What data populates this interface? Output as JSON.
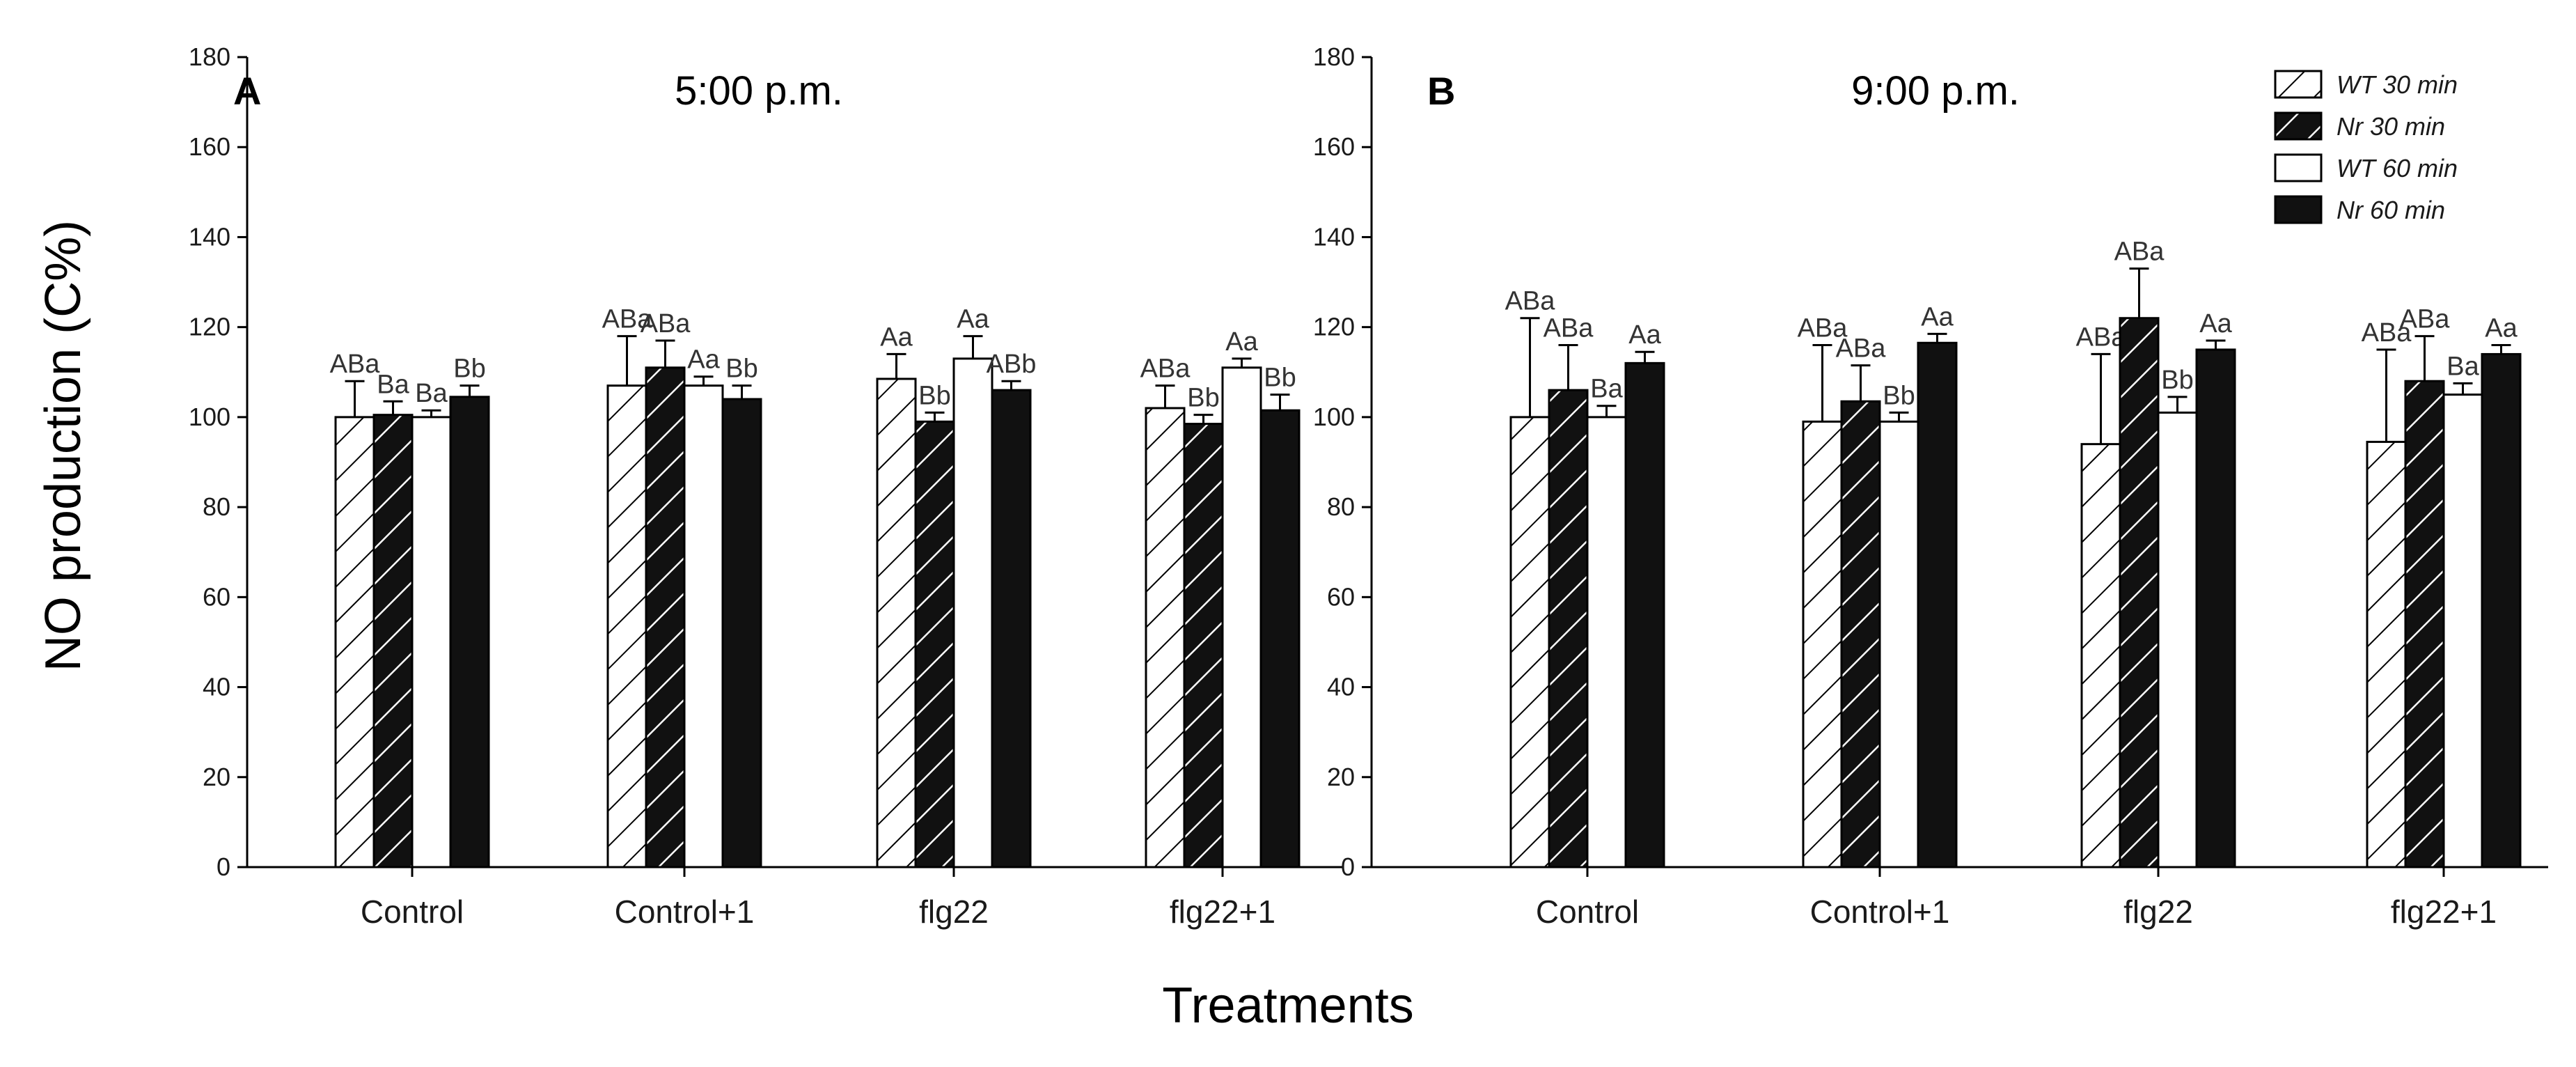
{
  "figure": {
    "ylabel": "NO production (C%)",
    "xlabel": "Treatments"
  },
  "legend": [
    {
      "name": "WT 30 min",
      "pattern": "hatch-white"
    },
    {
      "name": "Nr 30 min",
      "pattern": "hatch-black"
    },
    {
      "name": "WT 60 min",
      "pattern": "open"
    },
    {
      "name": "Nr 60 min",
      "pattern": "solid"
    }
  ],
  "colors": {
    "fill_dark": "#111111",
    "fill_light": "#ffffff",
    "stroke": "#000000"
  },
  "chart_data": [
    {
      "type": "bar",
      "panel_letter": "A",
      "title": "5:00 p.m.",
      "ylim": [
        0,
        180
      ],
      "yticks": [
        0,
        20,
        40,
        60,
        80,
        100,
        120,
        140,
        160,
        180
      ],
      "categories": [
        "Control",
        "Control+1",
        "flg22",
        "flg22+1"
      ],
      "series": [
        {
          "name": "WT 30 min",
          "values": [
            100,
            107,
            108.5,
            102
          ],
          "errors": [
            8,
            11,
            5.5,
            5
          ],
          "labels": [
            "ABa",
            "ABa",
            "Aa",
            "ABa"
          ]
        },
        {
          "name": "Nr 30 min",
          "values": [
            100.5,
            111,
            99,
            98.5
          ],
          "errors": [
            3,
            6,
            2,
            2
          ],
          "labels": [
            "Ba",
            "ABa",
            "Bb",
            "Bb"
          ]
        },
        {
          "name": "WT 60 min",
          "values": [
            100,
            107,
            113,
            111
          ],
          "errors": [
            1.5,
            2,
            5,
            2
          ],
          "labels": [
            "Ba",
            "Aa",
            "Aa",
            "Aa"
          ]
        },
        {
          "name": "Nr 60 min",
          "values": [
            104.5,
            104,
            106,
            101.5
          ],
          "errors": [
            2.5,
            3,
            2,
            3.5
          ],
          "labels": [
            "Bb",
            "Bb",
            "ABb",
            "Bb"
          ]
        }
      ]
    },
    {
      "type": "bar",
      "panel_letter": "B",
      "title": "9:00 p.m.",
      "ylim": [
        0,
        180
      ],
      "yticks": [
        0,
        20,
        40,
        60,
        80,
        100,
        120,
        140,
        160,
        180
      ],
      "categories": [
        "Control",
        "Control+1",
        "flg22",
        "flg22+1"
      ],
      "series": [
        {
          "name": "WT 30 min",
          "values": [
            100,
            99,
            94,
            94.5
          ],
          "errors": [
            22,
            17,
            20,
            20.5
          ],
          "labels": [
            "ABa",
            "ABa",
            "ABa",
            "ABa"
          ]
        },
        {
          "name": "Nr 30 min",
          "values": [
            106,
            103.5,
            122,
            108
          ],
          "errors": [
            10,
            8,
            11,
            10
          ],
          "labels": [
            "ABa",
            "ABa",
            "ABa",
            "ABa"
          ]
        },
        {
          "name": "WT 60 min",
          "values": [
            100,
            99,
            101,
            105
          ],
          "errors": [
            2.5,
            2,
            3.5,
            2.5
          ],
          "labels": [
            "Ba",
            "Bb",
            "Bb",
            "Ba"
          ]
        },
        {
          "name": "Nr 60 min",
          "values": [
            112,
            116.5,
            115,
            114
          ],
          "errors": [
            2.5,
            2,
            2,
            2
          ],
          "labels": [
            "Aa",
            "Aa",
            "Aa",
            "Aa"
          ]
        }
      ]
    }
  ]
}
